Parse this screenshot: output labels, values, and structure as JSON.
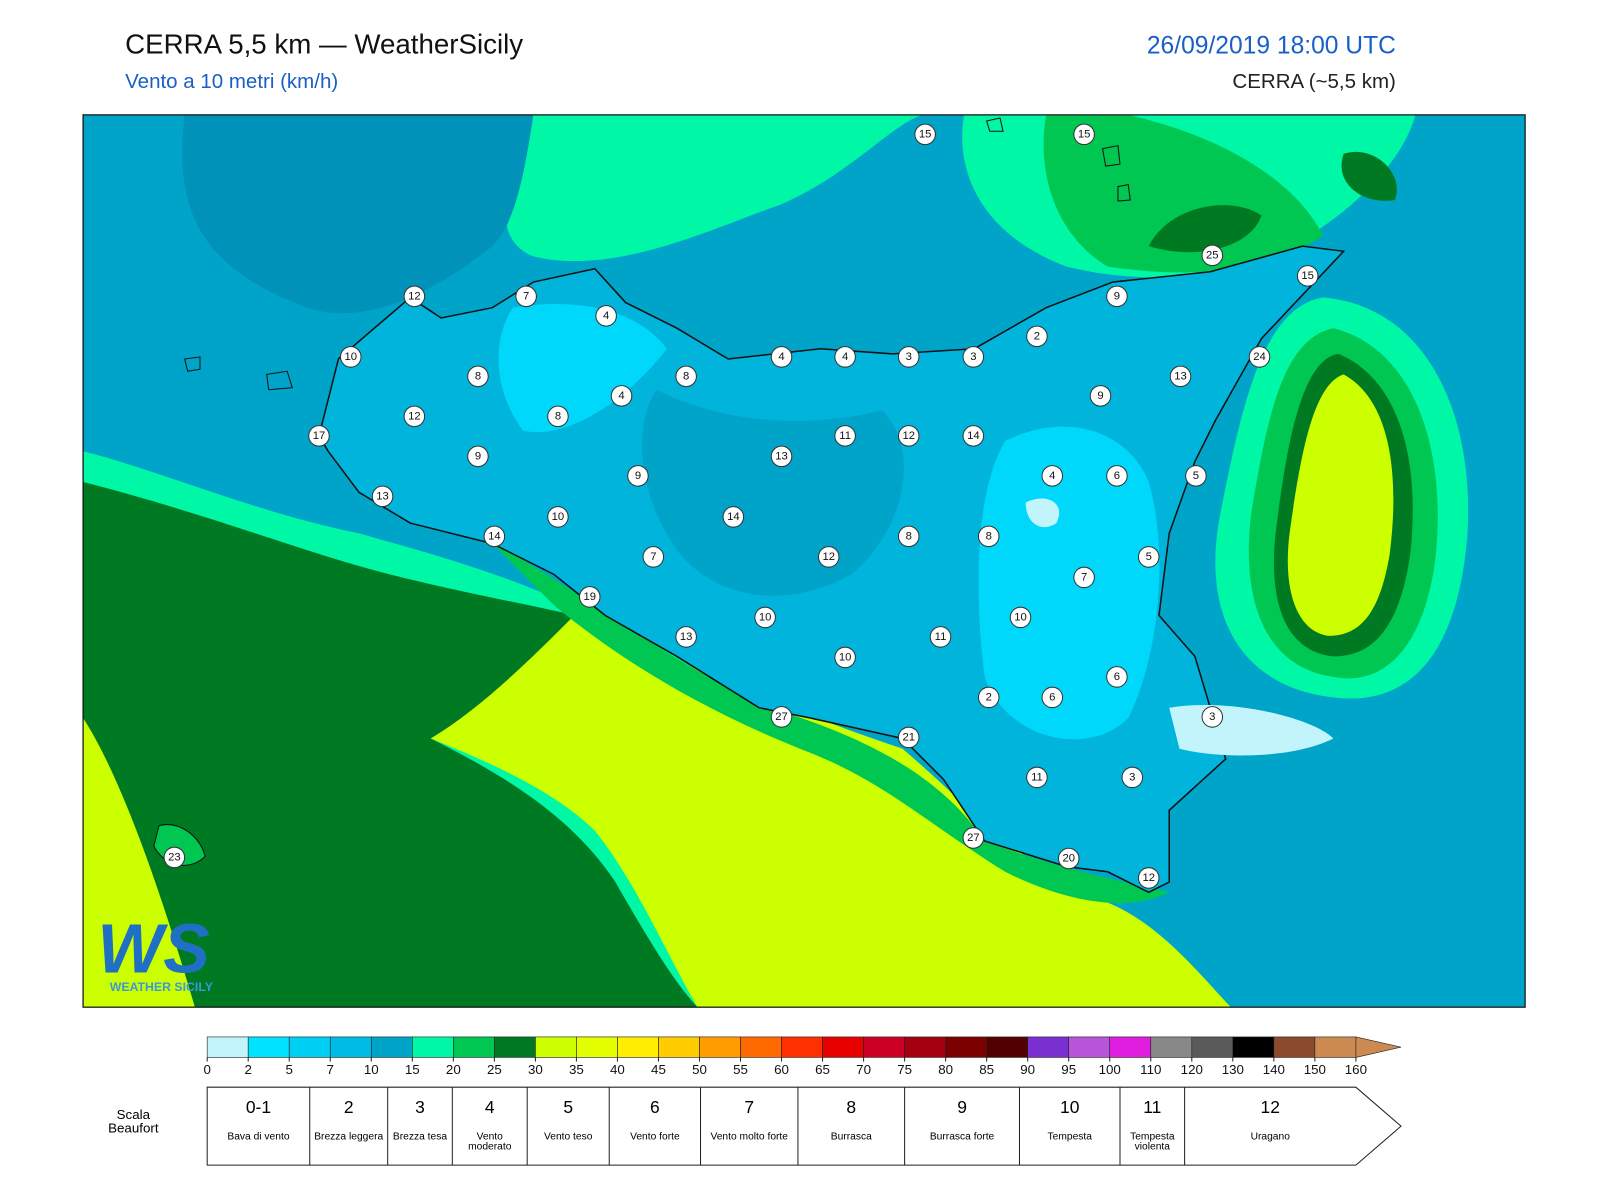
{
  "header": {
    "title": "CERRA 5,5 km — WeatherSicily",
    "subtitle": "Vento a 10 metri (km/h)",
    "datetime": "26/09/2019 18:00 UTC",
    "model": "CERRA (~5,5 km)"
  },
  "map": {
    "stations": [
      15,
      15,
      25,
      15,
      12,
      7,
      4,
      9,
      10,
      4,
      4,
      3,
      3,
      2,
      24,
      8,
      8,
      13,
      4,
      9,
      12,
      8,
      17,
      11,
      12,
      14,
      13,
      9,
      9,
      4,
      6,
      5,
      13,
      10,
      14,
      14,
      8,
      8,
      7,
      12,
      5,
      7,
      19,
      10,
      10,
      13,
      11,
      10,
      6,
      2,
      6,
      3,
      27,
      21,
      11,
      3,
      27,
      20,
      12,
      23
    ]
  },
  "logo": {
    "text": "WS",
    "subtitle": "WEATHER SICILY"
  },
  "colorbar": {
    "ticks": [
      0,
      2,
      5,
      7,
      10,
      15,
      20,
      25,
      30,
      35,
      40,
      45,
      50,
      55,
      60,
      65,
      70,
      75,
      80,
      85,
      90,
      95,
      100,
      110,
      120,
      130,
      140,
      150,
      160
    ],
    "colors": [
      "#c2f5fb",
      "#00e3ff",
      "#00cff4",
      "#00bce4",
      "#00a4c8",
      "#00f7a5",
      "#00c652",
      "#007a22",
      "#ccff00",
      "#e4ff00",
      "#ffee00",
      "#ffcc00",
      "#ff9c00",
      "#ff6a00",
      "#ff3000",
      "#e60000",
      "#cc0025",
      "#a50012",
      "#7d0000",
      "#520000",
      "#7a30d0",
      "#b855d8",
      "#e01ee0",
      "#888888",
      "#5a5a5a",
      "#000000",
      "#8b4a2b",
      "#cd8a50"
    ]
  },
  "beaufort": {
    "title": "Scala Beaufort",
    "levels": [
      {
        "number": "0-1",
        "label": "Bava di vento"
      },
      {
        "number": "2",
        "label": "Brezza leggera"
      },
      {
        "number": "3",
        "label": "Brezza tesa"
      },
      {
        "number": "4",
        "label": "Vento moderato"
      },
      {
        "number": "5",
        "label": "Vento teso"
      },
      {
        "number": "6",
        "label": "Vento forte"
      },
      {
        "number": "7",
        "label": "Vento molto forte"
      },
      {
        "number": "8",
        "label": "Burrasca"
      },
      {
        "number": "9",
        "label": "Burrasca forte"
      },
      {
        "number": "10",
        "label": "Tempesta"
      },
      {
        "number": "11",
        "label": "Tempesta violenta"
      },
      {
        "number": "12",
        "label": "Uragano"
      }
    ]
  }
}
